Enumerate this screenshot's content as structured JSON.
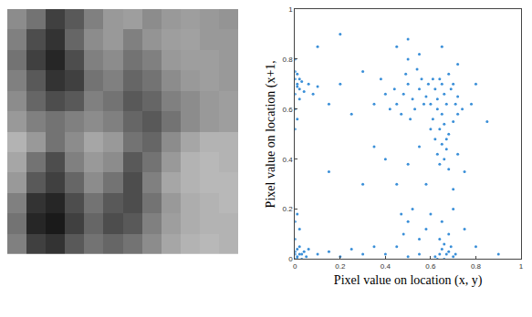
{
  "chart_data": [
    {
      "type": "heatmap",
      "tick_labels": false,
      "zlim": [
        0,
        1
      ],
      "cells": [
        [
          0.55,
          0.45,
          0.25,
          0.35,
          0.5,
          0.6,
          0.62,
          0.55,
          0.6,
          0.62,
          0.6,
          0.58
        ],
        [
          0.5,
          0.3,
          0.2,
          0.4,
          0.55,
          0.6,
          0.5,
          0.58,
          0.62,
          0.63,
          0.6,
          0.6
        ],
        [
          0.45,
          0.25,
          0.15,
          0.3,
          0.5,
          0.55,
          0.45,
          0.5,
          0.6,
          0.62,
          0.62,
          0.6
        ],
        [
          0.5,
          0.35,
          0.2,
          0.25,
          0.45,
          0.5,
          0.4,
          0.45,
          0.55,
          0.6,
          0.62,
          0.6
        ],
        [
          0.55,
          0.4,
          0.3,
          0.35,
          0.5,
          0.45,
          0.35,
          0.4,
          0.5,
          0.55,
          0.6,
          0.62
        ],
        [
          0.6,
          0.5,
          0.45,
          0.5,
          0.55,
          0.5,
          0.4,
          0.35,
          0.45,
          0.55,
          0.6,
          0.62
        ],
        [
          0.7,
          0.6,
          0.45,
          0.55,
          0.65,
          0.6,
          0.45,
          0.4,
          0.55,
          0.65,
          0.7,
          0.7
        ],
        [
          0.65,
          0.45,
          0.3,
          0.5,
          0.6,
          0.55,
          0.35,
          0.45,
          0.6,
          0.7,
          0.72,
          0.7
        ],
        [
          0.6,
          0.35,
          0.25,
          0.4,
          0.55,
          0.45,
          0.3,
          0.5,
          0.65,
          0.7,
          0.72,
          0.72
        ],
        [
          0.5,
          0.2,
          0.15,
          0.3,
          0.45,
          0.35,
          0.3,
          0.45,
          0.6,
          0.68,
          0.7,
          0.72
        ],
        [
          0.45,
          0.15,
          0.1,
          0.25,
          0.4,
          0.3,
          0.35,
          0.5,
          0.62,
          0.68,
          0.7,
          0.7
        ],
        [
          0.5,
          0.25,
          0.2,
          0.35,
          0.45,
          0.4,
          0.45,
          0.55,
          0.65,
          0.7,
          0.72,
          0.7
        ]
      ]
    },
    {
      "type": "scatter",
      "color": "#3a8fd8",
      "marker": "dot",
      "grid": false,
      "x_label": "Pixel value on location (x, y)",
      "y_label": "Pixel value on location (x+1,",
      "xlim": [
        0,
        1
      ],
      "ylim": [
        0,
        1
      ],
      "xticks": [
        0,
        0.2,
        0.4,
        0.6,
        0.8,
        1
      ],
      "yticks": [
        0,
        0.2,
        0.4,
        0.6,
        0.8,
        1
      ],
      "x": [
        0.0,
        0.01,
        0.02,
        0.0,
        0.01,
        0.03,
        0.02,
        0.0,
        0.01,
        0.04,
        0.0,
        0.02,
        0.06,
        0.1,
        0.08,
        0.0,
        0.01,
        0.0,
        0.0,
        0.01,
        0.02,
        0.03,
        0.0,
        0.04,
        0.01,
        0.05,
        0.02,
        0.0,
        0.06,
        0.03,
        0.01,
        0.0,
        0.0,
        0.01,
        0.02,
        0.45,
        0.48,
        0.5,
        0.52,
        0.55,
        0.47,
        0.53,
        0.56,
        0.58,
        0.6,
        0.62,
        0.64,
        0.66,
        0.68,
        0.7,
        0.72,
        0.63,
        0.65,
        0.67,
        0.61,
        0.66,
        0.64,
        0.68,
        0.62,
        0.65,
        0.67,
        0.63,
        0.66,
        0.64,
        0.68,
        0.7,
        0.72,
        0.59,
        0.57,
        0.51,
        0.44,
        0.42,
        0.4,
        0.49,
        0.54,
        0.69,
        0.71,
        0.74,
        0.6,
        0.67,
        0.63,
        0.65,
        0.61,
        0.3,
        0.2,
        0.15,
        0.25,
        0.35,
        0.38,
        0.45,
        0.5,
        0.55,
        0.65,
        0.72,
        0.8,
        0.78,
        0.85,
        0.5,
        0.2,
        0.1,
        0.35,
        0.4,
        0.55,
        0.5,
        0.72,
        0.75,
        0.45,
        0.58,
        0.7,
        0.3,
        0.15,
        0.62,
        0.64,
        0.66,
        0.68,
        0.7,
        0.65,
        0.67,
        0.63,
        0.69,
        0.71,
        0.66,
        0.64,
        0.68,
        0.45,
        0.48,
        0.5,
        0.52,
        0.47,
        0.55,
        0.58,
        0.6,
        0.65,
        0.7,
        0.75,
        0.4,
        0.35,
        0.3,
        0.25,
        0.2,
        0.15,
        0.1,
        0.8,
        0.9,
        0.5,
        0.55
      ],
      "values": [
        0.72,
        0.7,
        0.68,
        0.66,
        0.74,
        0.71,
        0.64,
        0.6,
        0.69,
        0.67,
        0.75,
        0.72,
        0.7,
        0.69,
        0.66,
        0.52,
        0.56,
        0.8,
        0.0,
        0.01,
        0.02,
        0.0,
        0.03,
        0.03,
        0.04,
        0.01,
        0.05,
        0.02,
        0.04,
        0.02,
        0.0,
        0.08,
        0.15,
        0.18,
        0.12,
        0.62,
        0.66,
        0.7,
        0.64,
        0.68,
        0.58,
        0.6,
        0.72,
        0.65,
        0.62,
        0.68,
        0.72,
        0.66,
        0.74,
        0.7,
        0.65,
        0.6,
        0.58,
        0.62,
        0.56,
        0.54,
        0.52,
        0.5,
        0.48,
        0.46,
        0.44,
        0.42,
        0.4,
        0.38,
        0.36,
        0.55,
        0.58,
        0.7,
        0.62,
        0.56,
        0.68,
        0.6,
        0.66,
        0.74,
        0.76,
        0.68,
        0.62,
        0.6,
        0.52,
        0.48,
        0.64,
        0.7,
        0.72,
        0.75,
        0.7,
        0.62,
        0.58,
        0.62,
        0.72,
        0.85,
        0.8,
        0.82,
        0.85,
        0.78,
        0.7,
        0.62,
        0.55,
        0.88,
        0.9,
        0.85,
        0.45,
        0.4,
        0.45,
        0.38,
        0.42,
        0.35,
        0.3,
        0.3,
        0.28,
        0.3,
        0.35,
        0.01,
        0.02,
        0.0,
        0.03,
        0.01,
        0.04,
        0.02,
        0.0,
        0.05,
        0.02,
        0.06,
        0.08,
        0.1,
        0.05,
        0.1,
        0.15,
        0.2,
        0.18,
        0.08,
        0.12,
        0.18,
        0.15,
        0.2,
        0.12,
        0.02,
        0.05,
        0.02,
        0.04,
        0.01,
        0.03,
        0.02,
        0.05,
        0.02,
        0.01,
        0.02
      ]
    }
  ]
}
